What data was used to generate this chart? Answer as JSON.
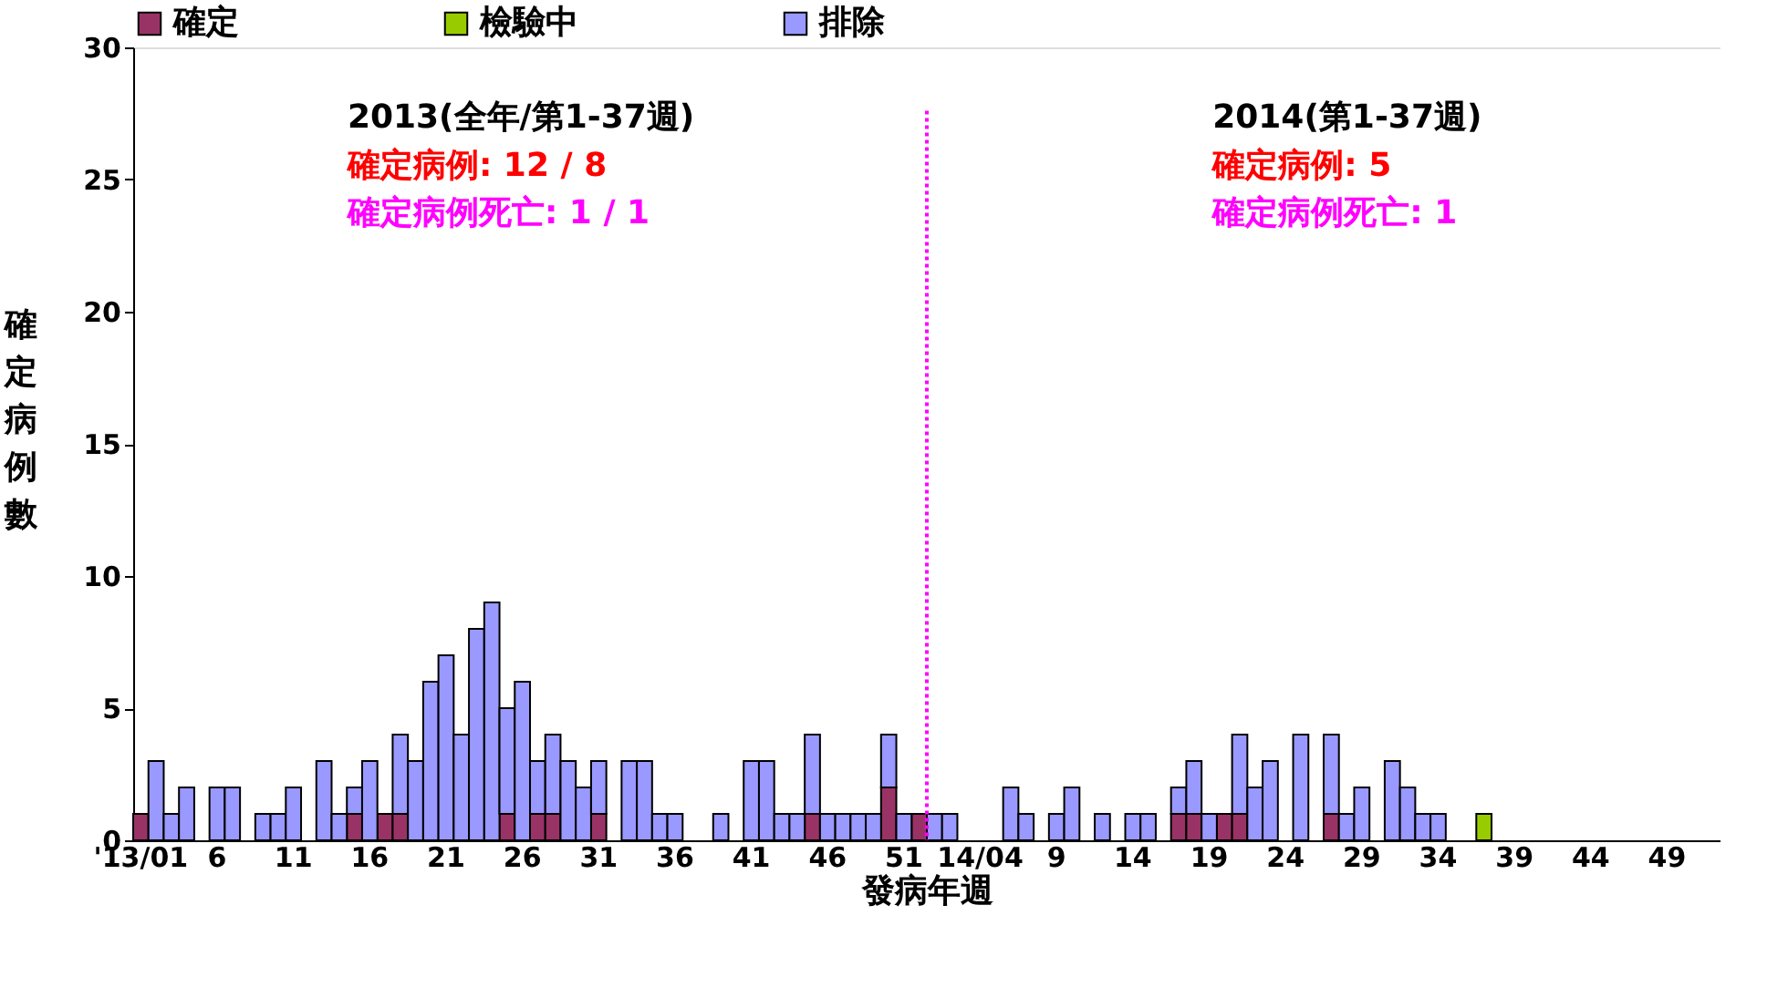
{
  "chart_data": {
    "type": "bar",
    "stacked": true,
    "xlabel": "發病年週",
    "ylabel": "確定病例數",
    "categories": [
      "'13/01",
      null,
      null,
      null,
      null,
      "6",
      null,
      null,
      null,
      null,
      "11",
      null,
      null,
      null,
      null,
      "16",
      null,
      null,
      null,
      null,
      "21",
      null,
      null,
      null,
      null,
      "26",
      null,
      null,
      null,
      null,
      "31",
      null,
      null,
      null,
      null,
      "36",
      null,
      null,
      null,
      null,
      "41",
      null,
      null,
      null,
      null,
      "46",
      null,
      null,
      null,
      null,
      "51",
      null,
      null,
      null,
      null,
      "14/04",
      null,
      null,
      null,
      null,
      "9",
      null,
      null,
      null,
      null,
      "14",
      null,
      null,
      null,
      null,
      "19",
      null,
      null,
      null,
      null,
      "24",
      null,
      null,
      null,
      null,
      "29",
      null,
      null,
      null,
      null,
      "34",
      null,
      null,
      null,
      null,
      "39",
      null,
      null,
      null,
      null,
      "44",
      null,
      null,
      null,
      null,
      "49",
      null,
      null,
      null
    ],
    "series": [
      {
        "name": "確定",
        "color": "#993366",
        "values": [
          1,
          0,
          0,
          0,
          0,
          0,
          0,
          0,
          0,
          0,
          0,
          0,
          0,
          0,
          1,
          0,
          1,
          1,
          0,
          0,
          0,
          0,
          0,
          0,
          1,
          0,
          1,
          1,
          0,
          0,
          1,
          0,
          0,
          0,
          0,
          0,
          0,
          0,
          0,
          0,
          0,
          0,
          0,
          0,
          1,
          0,
          0,
          0,
          0,
          2,
          0,
          1,
          0,
          0,
          0,
          0,
          0,
          0,
          0,
          0,
          0,
          0,
          0,
          0,
          0,
          0,
          0,
          0,
          1,
          1,
          0,
          1,
          1,
          0,
          0,
          0,
          0,
          0,
          1,
          0,
          0,
          0,
          0,
          0,
          0,
          0,
          0,
          0,
          0,
          0,
          0,
          0,
          0,
          0,
          0,
          0,
          0,
          0,
          0,
          0,
          0,
          0,
          0,
          0
        ]
      },
      {
        "name": "檢驗中",
        "color": "#99cc00",
        "values": [
          0,
          0,
          0,
          0,
          0,
          0,
          0,
          0,
          0,
          0,
          0,
          0,
          0,
          0,
          0,
          0,
          0,
          0,
          0,
          0,
          0,
          0,
          0,
          0,
          0,
          0,
          0,
          0,
          0,
          0,
          0,
          0,
          0,
          0,
          0,
          0,
          0,
          0,
          0,
          0,
          0,
          0,
          0,
          0,
          0,
          0,
          0,
          0,
          0,
          0,
          0,
          0,
          0,
          0,
          0,
          0,
          0,
          0,
          0,
          0,
          0,
          0,
          0,
          0,
          0,
          0,
          0,
          0,
          0,
          0,
          0,
          0,
          0,
          0,
          0,
          0,
          0,
          0,
          0,
          0,
          0,
          0,
          0,
          0,
          0,
          0,
          0,
          0,
          1,
          0,
          0,
          0,
          0,
          0,
          0,
          0,
          0,
          0,
          0,
          0,
          0,
          0,
          0,
          0
        ]
      },
      {
        "name": "排除",
        "color": "#9999ff",
        "values": [
          0,
          3,
          1,
          2,
          0,
          2,
          2,
          0,
          1,
          1,
          2,
          0,
          3,
          1,
          1,
          3,
          0,
          3,
          3,
          6,
          7,
          4,
          8,
          9,
          4,
          6,
          2,
          3,
          3,
          2,
          2,
          0,
          3,
          3,
          1,
          1,
          0,
          0,
          1,
          0,
          3,
          3,
          1,
          1,
          3,
          1,
          1,
          1,
          1,
          2,
          1,
          0,
          1,
          1,
          0,
          0,
          0,
          2,
          1,
          0,
          1,
          2,
          0,
          1,
          0,
          1,
          1,
          0,
          1,
          2,
          1,
          0,
          3,
          2,
          3,
          0,
          4,
          0,
          3,
          1,
          2,
          0,
          3,
          2,
          1,
          1,
          0,
          0,
          0,
          0,
          0,
          0,
          0,
          0,
          0,
          0,
          0,
          0,
          0,
          0,
          0,
          0,
          0,
          0
        ]
      }
    ],
    "ylim": [
      0,
      30
    ],
    "yticks": [
      0,
      5,
      10,
      15,
      20,
      25,
      30
    ],
    "grid": false,
    "legend": "top",
    "annotations": [
      "2013(全年/第1-37週)",
      "確定病例: 12 / 8",
      "確定病例死亡: 1 / 1",
      "2014(第1-37週)",
      "確定病例: 5",
      "確定病例死亡: 1"
    ]
  }
}
